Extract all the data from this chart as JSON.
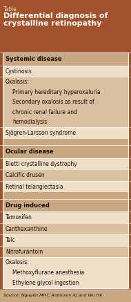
{
  "title_label": "Table",
  "title_main": "Differential diagnosis of\ncrystalline retinopathy",
  "header_bg": "#a0522d",
  "header_text_color": "#ffffff",
  "title_label_color": "#f0d9c0",
  "section_header_bg": "#c8a882",
  "section_header_text": "#1a0d00",
  "row_light_bg": "#eddfc8",
  "row_dark_bg": "#d9c0a0",
  "source_text": "Source: Nguyen MHT, Robinson AJ and Wu HK",
  "source_bg": "#c8a882",
  "outer_border_color": "#8b5a2b",
  "white_line": "#ffffff",
  "title_label_fs": 5.5,
  "title_main_fs": 8.0,
  "section_fs": 6.0,
  "item_fs": 5.5,
  "source_fs": 4.5,
  "rows": [
    {
      "type": "section",
      "text": "Systemic disease"
    },
    {
      "type": "item",
      "text": "Cystinosis"
    },
    {
      "type": "item_multi",
      "lines": [
        "Oxalosis:",
        "Primary hereditary hyperoxaluria",
        "Secondary oxalosis as result of",
        "chronic renal failure and",
        "hemodialysis"
      ]
    },
    {
      "type": "item",
      "text": "Sjögren-Larsson syndrome"
    },
    {
      "type": "spacer"
    },
    {
      "type": "section",
      "text": "Ocular disease"
    },
    {
      "type": "item",
      "text": "Bietti crystalline dystrophy"
    },
    {
      "type": "item",
      "text": "Calcific drusen"
    },
    {
      "type": "item",
      "text": "Retinal telangiectasia"
    },
    {
      "type": "spacer"
    },
    {
      "type": "section",
      "text": "Drug induced"
    },
    {
      "type": "item",
      "text": "Tamoxifen"
    },
    {
      "type": "item",
      "text": "Canthaxanthine"
    },
    {
      "type": "item",
      "text": "Talc"
    },
    {
      "type": "item",
      "text": "Nitrofurantoin"
    },
    {
      "type": "item_multi",
      "lines": [
        "Oxalosis:",
        "Methoxyflurane anesthesia",
        "Ethylene glycol ingestion"
      ]
    }
  ]
}
